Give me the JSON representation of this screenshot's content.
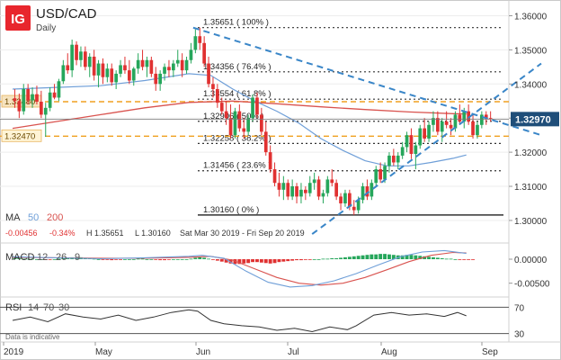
{
  "header": {
    "logo": "IG",
    "symbol": "USD/CAD",
    "timeframe": "Daily"
  },
  "info": {
    "ma_label": "MA",
    "ma_fast": "50",
    "ma_slow": "200",
    "change": "-0.00456",
    "change_pct": "-0.34%",
    "high": "H 1.35651",
    "low": "L 1.30160",
    "range": "Sat Mar 30 2019 - Fri Sep 20 2019"
  },
  "macd_label": {
    "name": "MACD",
    "p1": "12",
    "p2": "26",
    "p3": "9"
  },
  "rsi_label": {
    "name": "RSI",
    "p1": "14",
    "p2": "70",
    "p3": "30"
  },
  "disclaimer": "Data is indicative",
  "colors": {
    "up": "#26a65b",
    "down": "#e03131",
    "ma50": "#6f9fd8",
    "ma200": "#d9534f",
    "fib": "#333333",
    "support": "#f0a020",
    "trend": "#3a86c8",
    "price_tag": "#1f4e79",
    "logo": "#e8262d"
  },
  "chart_data": {
    "type": "candlestick",
    "title": "USD/CAD",
    "subtitle": "Daily",
    "x_labels": [
      "2019",
      "May",
      "Jun",
      "Jul",
      "Aug",
      "Sep"
    ],
    "ylim": [
      1.2955,
      1.3625
    ],
    "y_ticks": [
      "1.36000",
      "1.35000",
      "1.34000",
      "1.33000",
      "1.32000",
      "1.31000",
      "1.30000"
    ],
    "y_tick_values": [
      1.36,
      1.35,
      1.34,
      1.33,
      1.32,
      1.31,
      1.3
    ],
    "last_price": {
      "label": "1.32970",
      "value": 1.3297
    },
    "left_tags": [
      {
        "label": "1.33480",
        "value": 1.3348
      },
      {
        "label": "1.32470",
        "value": 1.3247
      }
    ],
    "fibonacci": [
      {
        "label": "1.35651 ( 100% )",
        "value": 1.35651
      },
      {
        "label": "1.34356 ( 76.4% )",
        "value": 1.34356
      },
      {
        "label": "1.33554 ( 61.8% )",
        "value": 1.33554
      },
      {
        "label": "1.32906 ( 50% )",
        "value": 1.32906
      },
      {
        "label": "1.32258 ( 38.2% )",
        "value": 1.32258
      },
      {
        "label": "1.31456 ( 23.6% )",
        "value": 1.31456
      },
      {
        "label": "1.30160 ( 0% )",
        "value": 1.3016
      }
    ],
    "support_lines": [
      1.3348,
      1.3247
    ],
    "candles": [
      [
        1.3358,
        1.3385,
        1.333,
        1.335
      ],
      [
        1.335,
        1.3372,
        1.33,
        1.332
      ],
      [
        1.332,
        1.34,
        1.331,
        1.3385
      ],
      [
        1.3385,
        1.34,
        1.334,
        1.3352
      ],
      [
        1.3352,
        1.339,
        1.333,
        1.337
      ],
      [
        1.337,
        1.3395,
        1.334,
        1.3348
      ],
      [
        1.3348,
        1.338,
        1.33,
        1.331
      ],
      [
        1.331,
        1.3345,
        1.3245,
        1.333
      ],
      [
        1.333,
        1.339,
        1.332,
        1.3375
      ],
      [
        1.3375,
        1.34,
        1.3355,
        1.336
      ],
      [
        1.336,
        1.3415,
        1.335,
        1.3408
      ],
      [
        1.3408,
        1.347,
        1.34,
        1.3455
      ],
      [
        1.3455,
        1.349,
        1.343,
        1.344
      ],
      [
        1.344,
        1.353,
        1.342,
        1.3515
      ],
      [
        1.3515,
        1.3525,
        1.3455,
        1.347
      ],
      [
        1.347,
        1.351,
        1.345,
        1.3495
      ],
      [
        1.3495,
        1.351,
        1.344,
        1.345
      ],
      [
        1.345,
        1.349,
        1.342,
        1.348
      ],
      [
        1.348,
        1.35,
        1.341,
        1.3425
      ],
      [
        1.3425,
        1.347,
        1.339,
        1.346
      ],
      [
        1.346,
        1.3475,
        1.34,
        1.342
      ],
      [
        1.342,
        1.346,
        1.3405,
        1.3445
      ],
      [
        1.3445,
        1.346,
        1.3395,
        1.3405
      ],
      [
        1.3405,
        1.344,
        1.3385,
        1.343
      ],
      [
        1.343,
        1.347,
        1.342,
        1.3455
      ],
      [
        1.3455,
        1.348,
        1.343,
        1.344
      ],
      [
        1.344,
        1.347,
        1.34,
        1.341
      ],
      [
        1.341,
        1.345,
        1.3395,
        1.3445
      ],
      [
        1.3445,
        1.349,
        1.343,
        1.347
      ],
      [
        1.347,
        1.35,
        1.344,
        1.345
      ],
      [
        1.345,
        1.348,
        1.342,
        1.347
      ],
      [
        1.347,
        1.348,
        1.342,
        1.343
      ],
      [
        1.343,
        1.345,
        1.338,
        1.34
      ],
      [
        1.34,
        1.344,
        1.338,
        1.343
      ],
      [
        1.343,
        1.346,
        1.341,
        1.345
      ],
      [
        1.345,
        1.347,
        1.342,
        1.344
      ],
      [
        1.344,
        1.347,
        1.342,
        1.346
      ],
      [
        1.346,
        1.35,
        1.345,
        1.347
      ],
      [
        1.347,
        1.349,
        1.342,
        1.344
      ],
      [
        1.344,
        1.348,
        1.343,
        1.347
      ],
      [
        1.347,
        1.352,
        1.346,
        1.35
      ],
      [
        1.35,
        1.356,
        1.349,
        1.354
      ],
      [
        1.354,
        1.3565,
        1.35,
        1.352
      ],
      [
        1.352,
        1.354,
        1.345,
        1.346
      ],
      [
        1.346,
        1.348,
        1.339,
        1.34
      ],
      [
        1.34,
        1.342,
        1.336,
        1.3385
      ],
      [
        1.3385,
        1.34,
        1.333,
        1.3345
      ],
      [
        1.3345,
        1.336,
        1.331,
        1.332
      ],
      [
        1.332,
        1.335,
        1.328,
        1.33
      ],
      [
        1.33,
        1.334,
        1.324,
        1.325
      ],
      [
        1.325,
        1.333,
        1.324,
        1.332
      ],
      [
        1.332,
        1.334,
        1.326,
        1.327
      ],
      [
        1.327,
        1.33,
        1.324,
        1.326
      ],
      [
        1.326,
        1.331,
        1.325,
        1.33
      ],
      [
        1.33,
        1.337,
        1.329,
        1.336
      ],
      [
        1.336,
        1.3375,
        1.33,
        1.331
      ],
      [
        1.331,
        1.333,
        1.325,
        1.326
      ],
      [
        1.326,
        1.329,
        1.319,
        1.32
      ],
      [
        1.32,
        1.322,
        1.314,
        1.315
      ],
      [
        1.315,
        1.317,
        1.31,
        1.311
      ],
      [
        1.311,
        1.314,
        1.307,
        1.309
      ],
      [
        1.309,
        1.313,
        1.306,
        1.311
      ],
      [
        1.311,
        1.312,
        1.306,
        1.307
      ],
      [
        1.307,
        1.312,
        1.306,
        1.31
      ],
      [
        1.31,
        1.311,
        1.305,
        1.307
      ],
      [
        1.307,
        1.311,
        1.305,
        1.309
      ],
      [
        1.309,
        1.31,
        1.306,
        1.308
      ],
      [
        1.308,
        1.313,
        1.307,
        1.311
      ],
      [
        1.311,
        1.314,
        1.309,
        1.312
      ],
      [
        1.312,
        1.313,
        1.306,
        1.307
      ],
      [
        1.307,
        1.309,
        1.305,
        1.308
      ],
      [
        1.308,
        1.313,
        1.307,
        1.312
      ],
      [
        1.312,
        1.315,
        1.31,
        1.311
      ],
      [
        1.311,
        1.312,
        1.306,
        1.307
      ],
      [
        1.307,
        1.308,
        1.303,
        1.305
      ],
      [
        1.305,
        1.309,
        1.304,
        1.308
      ],
      [
        1.308,
        1.309,
        1.303,
        1.304
      ],
      [
        1.304,
        1.306,
        1.3016,
        1.303
      ],
      [
        1.303,
        1.307,
        1.302,
        1.306
      ],
      [
        1.306,
        1.311,
        1.305,
        1.31
      ],
      [
        1.31,
        1.312,
        1.306,
        1.307
      ],
      [
        1.307,
        1.312,
        1.306,
        1.311
      ],
      [
        1.311,
        1.316,
        1.31,
        1.315
      ],
      [
        1.315,
        1.317,
        1.311,
        1.312
      ],
      [
        1.312,
        1.317,
        1.311,
        1.316
      ],
      [
        1.316,
        1.32,
        1.314,
        1.319
      ],
      [
        1.319,
        1.321,
        1.316,
        1.317
      ],
      [
        1.317,
        1.32,
        1.315,
        1.319
      ],
      [
        1.319,
        1.323,
        1.318,
        1.3215
      ],
      [
        1.3215,
        1.326,
        1.32,
        1.325
      ],
      [
        1.325,
        1.327,
        1.318,
        1.3195
      ],
      [
        1.3195,
        1.323,
        1.315,
        1.322
      ],
      [
        1.322,
        1.328,
        1.321,
        1.327
      ],
      [
        1.327,
        1.33,
        1.323,
        1.324
      ],
      [
        1.324,
        1.329,
        1.323,
        1.328
      ],
      [
        1.328,
        1.332,
        1.326,
        1.33
      ],
      [
        1.33,
        1.332,
        1.325,
        1.326
      ],
      [
        1.326,
        1.33,
        1.323,
        1.329
      ],
      [
        1.329,
        1.332,
        1.327,
        1.328
      ],
      [
        1.328,
        1.33,
        1.325,
        1.327
      ],
      [
        1.327,
        1.332,
        1.326,
        1.331
      ],
      [
        1.331,
        1.334,
        1.328,
        1.329
      ],
      [
        1.329,
        1.333,
        1.327,
        1.332
      ],
      [
        1.332,
        1.334,
        1.328,
        1.329
      ],
      [
        1.329,
        1.331,
        1.324,
        1.325
      ],
      [
        1.325,
        1.329,
        1.324,
        1.328
      ],
      [
        1.328,
        1.332,
        1.327,
        1.331
      ],
      [
        1.331,
        1.332,
        1.328,
        1.33
      ],
      [
        1.33,
        1.332,
        1.329,
        1.3297
      ]
    ],
    "ma50": [
      [
        0,
        1.3385
      ],
      [
        10,
        1.339
      ],
      [
        20,
        1.3395
      ],
      [
        30,
        1.341
      ],
      [
        40,
        1.343
      ],
      [
        45,
        1.3425
      ],
      [
        50,
        1.3385
      ],
      [
        55,
        1.335
      ],
      [
        60,
        1.332
      ],
      [
        65,
        1.3285
      ],
      [
        70,
        1.324
      ],
      [
        75,
        1.3205
      ],
      [
        80,
        1.3175
      ],
      [
        85,
        1.316
      ],
      [
        90,
        1.316
      ],
      [
        95,
        1.317
      ],
      [
        100,
        1.3182
      ],
      [
        103,
        1.3192
      ]
    ],
    "ma200": [
      [
        0,
        1.327
      ],
      [
        10,
        1.329
      ],
      [
        20,
        1.331
      ],
      [
        30,
        1.333
      ],
      [
        40,
        1.3346
      ],
      [
        50,
        1.335
      ],
      [
        60,
        1.3342
      ],
      [
        70,
        1.3333
      ],
      [
        80,
        1.3325
      ],
      [
        90,
        1.3318
      ],
      [
        100,
        1.3313
      ],
      [
        103,
        1.3312
      ]
    ],
    "trendlines": [
      {
        "from": [
          41,
          1.3565
        ],
        "to": [
          120,
          1.325
        ]
      },
      {
        "from": [
          68,
          1.296
        ],
        "to": [
          120,
          1.346
        ]
      }
    ],
    "macd": {
      "ylim": [
        -0.0075,
        0.003
      ],
      "y_ticks": [
        "0.00000",
        "-0.00500"
      ],
      "y_tick_values": [
        0.0,
        -0.005
      ],
      "hist": [
        0.0002,
        0.0002,
        0.0001,
        0.0001,
        0.0001,
        0.0,
        0.0,
        -0.0001,
        -0.0001,
        0.0,
        0.0001,
        0.0002,
        0.0003,
        0.0004,
        0.0004,
        0.0004,
        0.0003,
        0.0002,
        0.0001,
        0.0,
        -0.0001,
        -0.0001,
        -0.0002,
        -0.0001,
        -0.0001,
        0.0,
        0.0,
        0.0,
        0.0001,
        0.0001,
        0.0,
        0.0,
        -0.0001,
        -0.0002,
        -0.0002,
        -0.0001,
        0.0,
        0.0,
        0.0,
        0.0,
        0.0001,
        0.0003,
        0.0004,
        0.0003,
        0.0001,
        -0.0001,
        -0.0003,
        -0.0005,
        -0.0007,
        -0.0009,
        -0.001,
        -0.001,
        -0.0009,
        -0.0008,
        -0.0006,
        -0.0006,
        -0.0007,
        -0.0008,
        -0.0009,
        -0.0008,
        -0.0006,
        -0.0005,
        -0.0004,
        -0.0003,
        -0.0002,
        -0.0002,
        -0.0001,
        -0.0001,
        0.0,
        0.0,
        0.0001,
        0.0001,
        0.0002,
        0.0002,
        0.0003,
        0.0004,
        0.0005,
        0.0006,
        0.0007,
        0.0008,
        0.0009,
        0.001,
        0.001,
        0.0011,
        0.0011,
        0.001,
        0.0009,
        0.0008,
        0.0008,
        0.0009,
        0.0009,
        0.0008,
        0.0007,
        0.0006,
        0.0005,
        0.0004,
        0.0003,
        0.0002,
        0.0001,
        0.0001,
        0.0,
        -0.0001,
        -0.0001,
        -0.0001,
        -0.0001
      ],
      "macd_line": [
        [
          0,
          0.0005
        ],
        [
          10,
          0.0003
        ],
        [
          20,
          0.0001
        ],
        [
          30,
          0.0003
        ],
        [
          40,
          0.0006
        ],
        [
          43,
          0.0008
        ],
        [
          48,
          0.0002
        ],
        [
          53,
          -0.0025
        ],
        [
          58,
          -0.0048
        ],
        [
          63,
          -0.0058
        ],
        [
          68,
          -0.0055
        ],
        [
          73,
          -0.0045
        ],
        [
          78,
          -0.003
        ],
        [
          83,
          -0.0012
        ],
        [
          88,
          0.0005
        ],
        [
          93,
          0.0015
        ],
        [
          98,
          0.0018
        ],
        [
          103,
          0.0012
        ]
      ],
      "signal_line": [
        [
          0,
          0.0004
        ],
        [
          10,
          0.0003
        ],
        [
          20,
          0.0002
        ],
        [
          30,
          0.0002
        ],
        [
          40,
          0.0004
        ],
        [
          45,
          0.0006
        ],
        [
          50,
          -0.0002
        ],
        [
          55,
          -0.002
        ],
        [
          60,
          -0.0038
        ],
        [
          65,
          -0.005
        ],
        [
          70,
          -0.0054
        ],
        [
          75,
          -0.005
        ],
        [
          80,
          -0.0038
        ],
        [
          85,
          -0.0022
        ],
        [
          90,
          -0.0005
        ],
        [
          95,
          0.0008
        ],
        [
          100,
          0.0014
        ],
        [
          103,
          0.0013
        ]
      ]
    },
    "rsi": {
      "ylim": [
        20,
        80
      ],
      "y_ticks": [
        "70",
        "30"
      ],
      "y_tick_values": [
        70,
        30
      ],
      "values": [
        [
          0,
          50
        ],
        [
          4,
          55
        ],
        [
          8,
          48
        ],
        [
          12,
          60
        ],
        [
          16,
          55
        ],
        [
          20,
          52
        ],
        [
          24,
          58
        ],
        [
          28,
          50
        ],
        [
          32,
          55
        ],
        [
          36,
          62
        ],
        [
          40,
          66
        ],
        [
          42,
          64
        ],
        [
          45,
          50
        ],
        [
          48,
          45
        ],
        [
          52,
          42
        ],
        [
          56,
          40
        ],
        [
          60,
          35
        ],
        [
          64,
          38
        ],
        [
          68,
          33
        ],
        [
          72,
          40
        ],
        [
          76,
          36
        ],
        [
          78,
          42
        ],
        [
          82,
          58
        ],
        [
          86,
          62
        ],
        [
          90,
          58
        ],
        [
          94,
          60
        ],
        [
          98,
          56
        ],
        [
          101,
          62
        ],
        [
          103,
          57
        ]
      ]
    }
  }
}
